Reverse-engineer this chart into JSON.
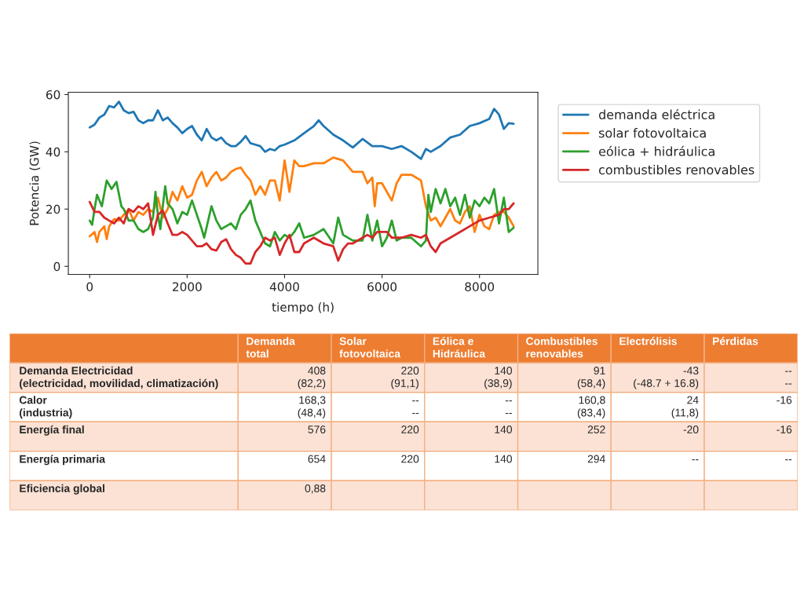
{
  "chart_data": [
    {
      "type": "line",
      "xlabel": "tiempo (h)",
      "ylabel": "Potencia (GW)",
      "xlim": [
        -438,
        9198
      ],
      "ylim": [
        -2.8,
        60.8
      ],
      "xticks": [
        0,
        2000,
        4000,
        6000,
        8000
      ],
      "yticks": [
        0,
        20,
        40,
        60
      ],
      "grid": false,
      "legend": "right",
      "line_style": "solid",
      "marker": "none",
      "series": [
        {
          "name": "demanda eléctrica",
          "color": "#1f77b4",
          "x": [
            0,
            100,
            200,
            300,
            400,
            500,
            600,
            700,
            800,
            900,
            1000,
            1100,
            1200,
            1300,
            1400,
            1500,
            1600,
            1700,
            1800,
            1900,
            2000,
            2100,
            2200,
            2300,
            2400,
            2500,
            2600,
            2700,
            2800,
            2900,
            3000,
            3100,
            3200,
            3300,
            3400,
            3500,
            3600,
            3700,
            3800,
            3900,
            4000,
            4200,
            4400,
            4600,
            4700,
            4800,
            5000,
            5200,
            5400,
            5600,
            5800,
            6000,
            6200,
            6400,
            6600,
            6800,
            6900,
            7000,
            7200,
            7400,
            7600,
            7800,
            8000,
            8200,
            8300,
            8400,
            8500,
            8600,
            8700
          ],
          "values": [
            48.5,
            49.5,
            52,
            53,
            56,
            55.5,
            57.5,
            54.5,
            53.5,
            54,
            51,
            50,
            51,
            51,
            54.5,
            51,
            52,
            50,
            48.5,
            46.5,
            48,
            49,
            46,
            44,
            48,
            45,
            44,
            45,
            43,
            42,
            42,
            43.5,
            45.5,
            43,
            42.5,
            42,
            40,
            41,
            40.5,
            42,
            42.5,
            44,
            46.5,
            49,
            51,
            49,
            46,
            44,
            41.5,
            44.5,
            42,
            42,
            41,
            42,
            40,
            37.5,
            41,
            40,
            42,
            45,
            46,
            49,
            50,
            51.5,
            55,
            53,
            48,
            50,
            49.8
          ]
        },
        {
          "name": "solar fotovoltaica",
          "color": "#ff7f0e",
          "x": [
            0,
            100,
            150,
            200,
            300,
            350,
            400,
            500,
            600,
            700,
            800,
            900,
            1000,
            1100,
            1200,
            1300,
            1400,
            1500,
            1600,
            1700,
            1800,
            1900,
            2000,
            2100,
            2200,
            2300,
            2400,
            2500,
            2600,
            2700,
            2800,
            2900,
            3000,
            3100,
            3200,
            3300,
            3400,
            3500,
            3600,
            3700,
            3800,
            3900,
            4000,
            4100,
            4200,
            4300,
            4400,
            4600,
            4800,
            5000,
            5200,
            5400,
            5600,
            5700,
            5800,
            5850,
            5900,
            6000,
            6200,
            6300,
            6400,
            6600,
            6800,
            6900,
            7000,
            7100,
            7200,
            7300,
            7400,
            7500,
            7600,
            7700,
            7800,
            7900,
            8000,
            8100,
            8200,
            8300,
            8400,
            8500,
            8600,
            8700
          ],
          "values": [
            10.5,
            12,
            8.5,
            12,
            14,
            9.5,
            14,
            16.5,
            16,
            18,
            20,
            16,
            19,
            18,
            20,
            19,
            24,
            17,
            20,
            26,
            23,
            28,
            24,
            25,
            30,
            33,
            28,
            31,
            33,
            30,
            31,
            33,
            34,
            34.5,
            32,
            30,
            25,
            28,
            25,
            30,
            30,
            23,
            37,
            26,
            37,
            35,
            35,
            36,
            36,
            38,
            37,
            33,
            33,
            29,
            31,
            21,
            29,
            29,
            23,
            29,
            32,
            32,
            30,
            21,
            16,
            17,
            14,
            17,
            20,
            16,
            15,
            19,
            21,
            12,
            18,
            14,
            13,
            18,
            19,
            19,
            17,
            14
          ]
        },
        {
          "name": "eólica + hidráulica",
          "color": "#2ca02c",
          "x": [
            0,
            50,
            100,
            150,
            250,
            350,
            450,
            550,
            650,
            700,
            800,
            900,
            1000,
            1100,
            1200,
            1300,
            1350,
            1400,
            1450,
            1500,
            1550,
            1600,
            1700,
            1800,
            1900,
            2000,
            2100,
            2200,
            2300,
            2350,
            2500,
            2600,
            2700,
            2800,
            2900,
            3000,
            3100,
            3200,
            3300,
            3400,
            3500,
            3600,
            3700,
            3800,
            3900,
            4000,
            4100,
            4200,
            4300,
            4400,
            4600,
            4800,
            5000,
            5100,
            5200,
            5400,
            5600,
            5700,
            5800,
            5900,
            6000,
            6100,
            6200,
            6300,
            6400,
            6600,
            6800,
            6900,
            6950,
            7000,
            7100,
            7200,
            7300,
            7400,
            7500,
            7600,
            7700,
            7800,
            7900,
            8000,
            8100,
            8200,
            8300,
            8400,
            8500,
            8600,
            8700
          ],
          "values": [
            16,
            14.5,
            20,
            25,
            21,
            30,
            27,
            29.5,
            21,
            20,
            16,
            16,
            13,
            12,
            13,
            17,
            26,
            18,
            13,
            21,
            28,
            22,
            20,
            15,
            19,
            18,
            23,
            18,
            13,
            10,
            21,
            16,
            13,
            14,
            15,
            13,
            18,
            20,
            23,
            16,
            12,
            8,
            7,
            12,
            9,
            11,
            10,
            12,
            15,
            10,
            11,
            13,
            8,
            17,
            11,
            9,
            9,
            18,
            9,
            16,
            7,
            10,
            16,
            9,
            10,
            10,
            7,
            9,
            25,
            19,
            27,
            22,
            27,
            21,
            24,
            18,
            25,
            17,
            23,
            21,
            24,
            22,
            27,
            15,
            24,
            12,
            13.5
          ]
        },
        {
          "name": "combustibles renovables",
          "color": "#d62728",
          "x": [
            0,
            100,
            200,
            300,
            400,
            500,
            600,
            700,
            800,
            900,
            1000,
            1100,
            1200,
            1300,
            1400,
            1500,
            1600,
            1700,
            1800,
            1900,
            2000,
            2100,
            2200,
            2300,
            2400,
            2500,
            2600,
            2700,
            2800,
            2900,
            3000,
            3100,
            3200,
            3300,
            3400,
            3500,
            3600,
            3700,
            3800,
            3900,
            4000,
            4100,
            4200,
            4300,
            4400,
            4600,
            4800,
            5000,
            5100,
            5200,
            5300,
            5400,
            5600,
            5700,
            5800,
            5900,
            6000,
            6100,
            6200,
            6400,
            6600,
            6800,
            6900,
            7000,
            7100,
            7200,
            7400,
            7600,
            7800,
            8000,
            8200,
            8400,
            8500,
            8600,
            8700
          ],
          "values": [
            22.5,
            19,
            19,
            17,
            16,
            15,
            17,
            15,
            20,
            19,
            21,
            20,
            22,
            11,
            18,
            19.5,
            15,
            11,
            11,
            12,
            11,
            9,
            7,
            7,
            8,
            6,
            5.5,
            8.5,
            9.5,
            6,
            4,
            3,
            1,
            1,
            5,
            7,
            10,
            9,
            10,
            4,
            8,
            11,
            5,
            5,
            8,
            10,
            8,
            7,
            2,
            6,
            8,
            8,
            10,
            11,
            10,
            12,
            12,
            12,
            10,
            10,
            11,
            10,
            11,
            7,
            5,
            8,
            10,
            12,
            14,
            16,
            17,
            18,
            20,
            20,
            22
          ]
        }
      ]
    },
    {
      "type": "other",
      "categories": [
        "Demanda\ntotal",
        "Solar\nfotovoltaica",
        "Eólica e\nHidráulica",
        "Combustibles\nrenovables",
        "Electrólisis",
        "Pérdidas"
      ],
      "y_categories": [
        "Demanda Electricidad\n(electricidad, movilidad, climatización)",
        "Calor\n(industria)",
        "Energía final",
        "Energía primaria",
        "Eficiencia global"
      ],
      "cell_labels": [
        [
          "408\n(82,2)",
          "220\n(91,1)",
          "140\n(38,9)",
          "91\n(58,4)",
          "-43\n(-48.7 + 16.8)",
          "--\n--"
        ],
        [
          "168,3\n(48,4)",
          "--\n--",
          "--\n--",
          "160,8\n(83,4)",
          "24\n(11,8)",
          "-16"
        ],
        [
          "576",
          "220",
          "140",
          "252",
          "-20",
          "-16"
        ],
        [
          "654",
          "220",
          "140",
          "294",
          "--",
          "--"
        ],
        [
          "0,88",
          null,
          null,
          null,
          null,
          null
        ]
      ]
    }
  ]
}
